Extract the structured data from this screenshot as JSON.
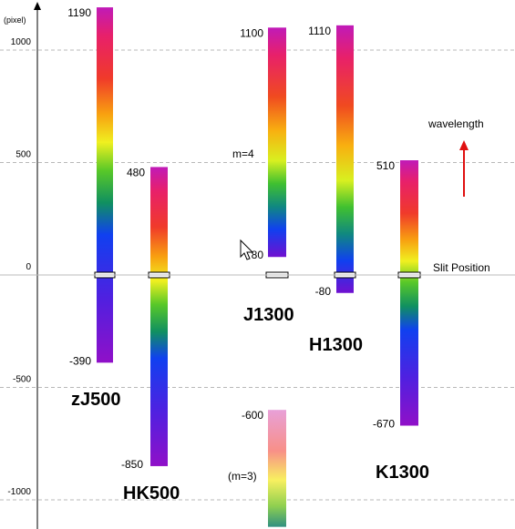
{
  "chart_data": {
    "type": "range-bar",
    "y_unit_label": "(pixel)",
    "ylim": [
      -1110,
      1220
    ],
    "y_ticks": [
      1000,
      500,
      0,
      -500,
      -1000
    ],
    "grid": "horizontal dashed",
    "slit_label": "Slit Position",
    "wavelength_label": "wavelength",
    "bars": [
      {
        "name": "zJ500",
        "top": 1190,
        "bottom": -390,
        "top_label": "1190",
        "bottom_label": "-390",
        "gradient": "full-top-red"
      },
      {
        "name": "HK500",
        "top": 480,
        "bottom": -850,
        "top_label": "480",
        "bottom_label": "-850",
        "gradient": "full-top-red"
      },
      {
        "name": "J1300",
        "top": 1100,
        "bottom": 80,
        "top_label": "1100",
        "bottom_label": "80",
        "note": "m=4",
        "gradient": "upper"
      },
      {
        "name": "J1300-m3",
        "top": -600,
        "bottom": -1120,
        "top_label": "-600",
        "note": "(m=3)",
        "gradient": "pastel"
      },
      {
        "name": "H1300",
        "top": 1110,
        "bottom": -80,
        "top_label": "1110",
        "bottom_label": "-80",
        "gradient": "upper"
      },
      {
        "name": "K1300",
        "top": 510,
        "bottom": -670,
        "top_label": "510",
        "bottom_label": "-670",
        "gradient": "full-top-magenta"
      }
    ],
    "labels": [
      "zJ500",
      "HK500",
      "J1300",
      "H1300",
      "K1300"
    ]
  }
}
